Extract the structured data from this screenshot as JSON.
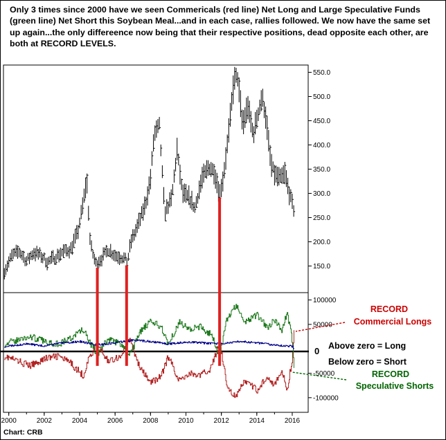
{
  "headline": "Only 3 times since 2000 have we seen Commericals (red line) Net Long and Large Speculative Funds (green line) Net Short this Soybean Meal...and in each case, rallies followed. We now have the same set up again...the only differeence now being that their respective positions, dead opposite each other, are both at RECORD LEVELS.",
  "source": "Chart: CRB",
  "annotations": {
    "commercial_1": "RECORD",
    "commercial_2": "Commercial Longs",
    "speculative_1": "RECORD",
    "speculative_2": "Speculative Shorts",
    "zero": "0",
    "above": "Above zero = Long",
    "below": "Below zero = Short"
  },
  "colors": {
    "price": "#000000",
    "commercials": "#b22222",
    "speculators": "#1f7a1f",
    "small_traders": "#00008b",
    "markers": "#e02020",
    "callout_commercial": "#cc0000",
    "callout_speculative": "#006400"
  },
  "chart_data": [
    {
      "type": "line",
      "style": "ohlc-bars",
      "x_ticks": [
        "2000",
        "2002",
        "2004",
        "2006",
        "2008",
        "2010",
        "2012",
        "2014",
        "2016"
      ],
      "y_ticks": [
        "150.0",
        "200.0",
        "250.0",
        "300.0",
        "350.0",
        "400.0",
        "450.0",
        "500.0",
        "550.0"
      ],
      "xlim": [
        1999.7,
        2016.9
      ],
      "ylim": [
        95,
        565
      ],
      "points": [
        [
          1999.75,
          140
        ],
        [
          2000.2,
          172
        ],
        [
          2000.6,
          180
        ],
        [
          2001.0,
          160
        ],
        [
          2001.4,
          178
        ],
        [
          2001.8,
          172
        ],
        [
          2002.2,
          158
        ],
        [
          2002.6,
          168
        ],
        [
          2003.0,
          178
        ],
        [
          2003.5,
          185
        ],
        [
          2003.9,
          220
        ],
        [
          2004.2,
          280
        ],
        [
          2004.4,
          330
        ],
        [
          2004.6,
          195
        ],
        [
          2004.9,
          155
        ],
        [
          2005.3,
          168
        ],
        [
          2005.6,
          185
        ],
        [
          2006.0,
          172
        ],
        [
          2006.4,
          168
        ],
        [
          2006.7,
          160
        ],
        [
          2006.9,
          200
        ],
        [
          2007.3,
          235
        ],
        [
          2007.7,
          275
        ],
        [
          2008.0,
          330
        ],
        [
          2008.2,
          420
        ],
        [
          2008.5,
          440
        ],
        [
          2008.8,
          260
        ],
        [
          2009.2,
          290
        ],
        [
          2009.5,
          390
        ],
        [
          2009.8,
          300
        ],
        [
          2010.2,
          290
        ],
        [
          2010.5,
          270
        ],
        [
          2010.9,
          330
        ],
        [
          2011.3,
          355
        ],
        [
          2011.6,
          345
        ],
        [
          2011.9,
          300
        ],
        [
          2012.1,
          330
        ],
        [
          2012.4,
          420
        ],
        [
          2012.7,
          530
        ],
        [
          2012.9,
          545
        ],
        [
          2013.2,
          440
        ],
        [
          2013.5,
          480
        ],
        [
          2013.8,
          420
        ],
        [
          2014.0,
          455
        ],
        [
          2014.3,
          500
        ],
        [
          2014.5,
          460
        ],
        [
          2014.8,
          360
        ],
        [
          2015.0,
          340
        ],
        [
          2015.3,
          330
        ],
        [
          2015.6,
          340
        ],
        [
          2015.8,
          305
        ],
        [
          2016.1,
          265
        ]
      ]
    },
    {
      "type": "line",
      "y_ticks": [
        "100000",
        "50000",
        "-50000",
        "-100000"
      ],
      "ylim": [
        -130000,
        115000
      ],
      "series": [
        {
          "points": [
            [
              1999.75,
              -15000
            ],
            [
              2000.5,
              -25000
            ],
            [
              2001.2,
              -35000
            ],
            [
              2002.0,
              -20000
            ],
            [
              2002.8,
              -15000
            ],
            [
              2003.5,
              -30000
            ],
            [
              2004.2,
              -55000
            ],
            [
              2004.5,
              -20000
            ],
            [
              2005.0,
              10000
            ],
            [
              2005.6,
              -25000
            ],
            [
              2006.3,
              -15000
            ],
            [
              2006.8,
              20000
            ],
            [
              2007.4,
              -40000
            ],
            [
              2008.0,
              -70000
            ],
            [
              2008.6,
              -55000
            ],
            [
              2009.0,
              -15000
            ],
            [
              2009.6,
              -65000
            ],
            [
              2010.2,
              -50000
            ],
            [
              2010.8,
              -55000
            ],
            [
              2011.4,
              -40000
            ],
            [
              2011.9,
              15000
            ],
            [
              2012.3,
              -75000
            ],
            [
              2012.8,
              -100000
            ],
            [
              2013.3,
              -65000
            ],
            [
              2014.0,
              -85000
            ],
            [
              2014.6,
              -55000
            ],
            [
              2015.0,
              -75000
            ],
            [
              2015.4,
              -45000
            ],
            [
              2015.7,
              -85000
            ],
            [
              2016.0,
              -20000
            ],
            [
              2016.1,
              45000
            ]
          ]
        },
        {
          "points": [
            [
              1999.75,
              10000
            ],
            [
              2000.5,
              18000
            ],
            [
              2001.2,
              25000
            ],
            [
              2002.0,
              15000
            ],
            [
              2002.8,
              10000
            ],
            [
              2003.5,
              22000
            ],
            [
              2004.2,
              40000
            ],
            [
              2004.5,
              15000
            ],
            [
              2005.0,
              -10000
            ],
            [
              2005.6,
              20000
            ],
            [
              2006.3,
              10000
            ],
            [
              2006.8,
              -15000
            ],
            [
              2007.4,
              35000
            ],
            [
              2008.0,
              55000
            ],
            [
              2008.6,
              45000
            ],
            [
              2009.0,
              10000
            ],
            [
              2009.6,
              55000
            ],
            [
              2010.2,
              40000
            ],
            [
              2010.8,
              45000
            ],
            [
              2011.4,
              30000
            ],
            [
              2011.9,
              -15000
            ],
            [
              2012.3,
              60000
            ],
            [
              2012.8,
              90000
            ],
            [
              2013.3,
              55000
            ],
            [
              2014.0,
              70000
            ],
            [
              2014.6,
              45000
            ],
            [
              2015.0,
              60000
            ],
            [
              2015.4,
              35000
            ],
            [
              2015.7,
              75000
            ],
            [
              2016.0,
              15000
            ],
            [
              2016.1,
              -45000
            ]
          ]
        },
        {
          "points": [
            [
              1999.75,
              5000
            ],
            [
              2001.0,
              10000
            ],
            [
              2002.0,
              6000
            ],
            [
              2003.0,
              12000
            ],
            [
              2004.0,
              15000
            ],
            [
              2005.0,
              8000
            ],
            [
              2006.0,
              12000
            ],
            [
              2007.0,
              18000
            ],
            [
              2008.0,
              15000
            ],
            [
              2009.0,
              10000
            ],
            [
              2010.0,
              14000
            ],
            [
              2011.0,
              12000
            ],
            [
              2012.0,
              10000
            ],
            [
              2013.0,
              15000
            ],
            [
              2014.0,
              12000
            ],
            [
              2015.0,
              8000
            ],
            [
              2016.0,
              5000
            ],
            [
              2016.1,
              0
            ]
          ]
        }
      ]
    }
  ]
}
